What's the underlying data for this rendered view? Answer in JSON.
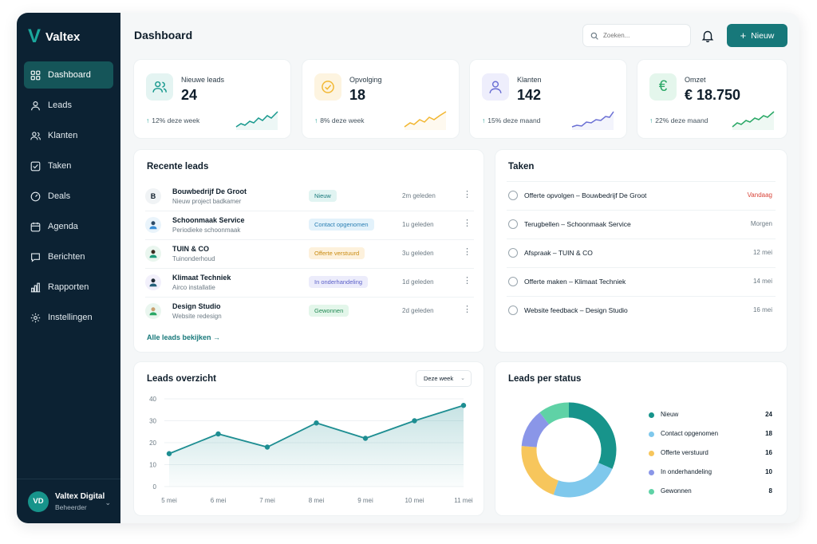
{
  "app": {
    "logo": "V",
    "name": "Valtex"
  },
  "sidebar": {
    "items": [
      {
        "label": "Dashboard",
        "icon": "grid-icon"
      },
      {
        "label": "Leads",
        "icon": "user-icon"
      },
      {
        "label": "Klanten",
        "icon": "users-icon"
      },
      {
        "label": "Taken",
        "icon": "checkbox-icon"
      },
      {
        "label": "Deals",
        "icon": "gauge-icon"
      },
      {
        "label": "Agenda",
        "icon": "calendar-icon"
      },
      {
        "label": "Berichten",
        "icon": "message-icon"
      },
      {
        "label": "Rapporten",
        "icon": "bar-chart-icon"
      },
      {
        "label": "Instellingen",
        "icon": "gear-icon"
      }
    ],
    "user": {
      "initials": "VD",
      "name": "Valtex Digital",
      "role": "Beheerder"
    }
  },
  "header": {
    "title": "Dashboard",
    "search_placeholder": "Zoeken...",
    "new_button": "Nieuw"
  },
  "stats": [
    {
      "label": "Nieuwe leads",
      "value": "24",
      "trend": "12% deze week",
      "icon": "users-icon",
      "color": "#1a9a8f"
    },
    {
      "label": "Opvolging",
      "value": "18",
      "trend": "8% deze week",
      "icon": "check-circle-icon",
      "color": "#f2b731"
    },
    {
      "label": "Klanten",
      "value": "142",
      "trend": "15% deze maand",
      "icon": "user-icon",
      "color": "#6a6fd4"
    },
    {
      "label": "Omzet",
      "value": "€ 18.750",
      "trend": "22% deze maand",
      "icon": "euro-icon",
      "color": "#2aa866"
    }
  ],
  "recent_leads": {
    "title": "Recente leads",
    "rows": [
      {
        "avatar": "B",
        "name": "Bouwbedrijf De Groot",
        "sub": "Nieuw project badkamer",
        "status": "Nieuw",
        "time": "2m geleden"
      },
      {
        "avatar": "",
        "name": "Schoonmaak Service",
        "sub": "Periodieke schoonmaak",
        "status": "Contact opgenomen",
        "time": "1u geleden"
      },
      {
        "avatar": "",
        "name": "TUIN & CO",
        "sub": "Tuinonderhoud",
        "status": "Offerte verstuurd",
        "time": "3u geleden"
      },
      {
        "avatar": "",
        "name": "Klimaat Techniek",
        "sub": "Airco installatie",
        "status": "In onderhandeling",
        "time": "1d geleden"
      },
      {
        "avatar": "",
        "name": "Design Studio",
        "sub": "Website redesign",
        "status": "Gewonnen",
        "time": "2d geleden"
      }
    ],
    "all_link": "Alle leads bekijken →"
  },
  "tasks": {
    "title": "Taken",
    "rows": [
      {
        "text": "Offerte opvolgen – Bouwbedrijf De Groot",
        "date": "Vandaag",
        "urgent": true
      },
      {
        "text": "Terugbellen – Schoonmaak Service",
        "date": "Morgen",
        "urgent": false
      },
      {
        "text": "Afspraak – TUIN & CO",
        "date": "12 mei",
        "urgent": false
      },
      {
        "text": "Offerte maken – Klimaat Techniek",
        "date": "14 mei",
        "urgent": false
      },
      {
        "text": "Website feedback – Design Studio",
        "date": "16 mei",
        "urgent": false
      }
    ]
  },
  "leads_chart": {
    "title": "Leads overzicht",
    "range_select": "Deze week"
  },
  "status_chart": {
    "title": "Leads per status"
  },
  "chart_data": [
    {
      "type": "area",
      "title": "Leads overzicht",
      "categories": [
        "5 mei",
        "6 mei",
        "7 mei",
        "8 mei",
        "9 mei",
        "10 mei",
        "11 mei"
      ],
      "values": [
        15,
        24,
        18,
        29,
        22,
        30,
        37
      ],
      "yticks": [
        0,
        10,
        20,
        30,
        40
      ],
      "ylim": [
        0,
        40
      ],
      "grid": true,
      "color": "#1e8e92"
    },
    {
      "type": "pie",
      "title": "Leads per status",
      "donut": true,
      "labels": [
        "Nieuw",
        "Contact opgenomen",
        "Offerte verstuurd",
        "In onderhandeling",
        "Gewonnen"
      ],
      "values": [
        24,
        18,
        16,
        10,
        8
      ],
      "colors": [
        "#17948b",
        "#7fc8ec",
        "#f7c65c",
        "#8a96e8",
        "#5fd2a6"
      ],
      "legend_placement": "right"
    }
  ]
}
